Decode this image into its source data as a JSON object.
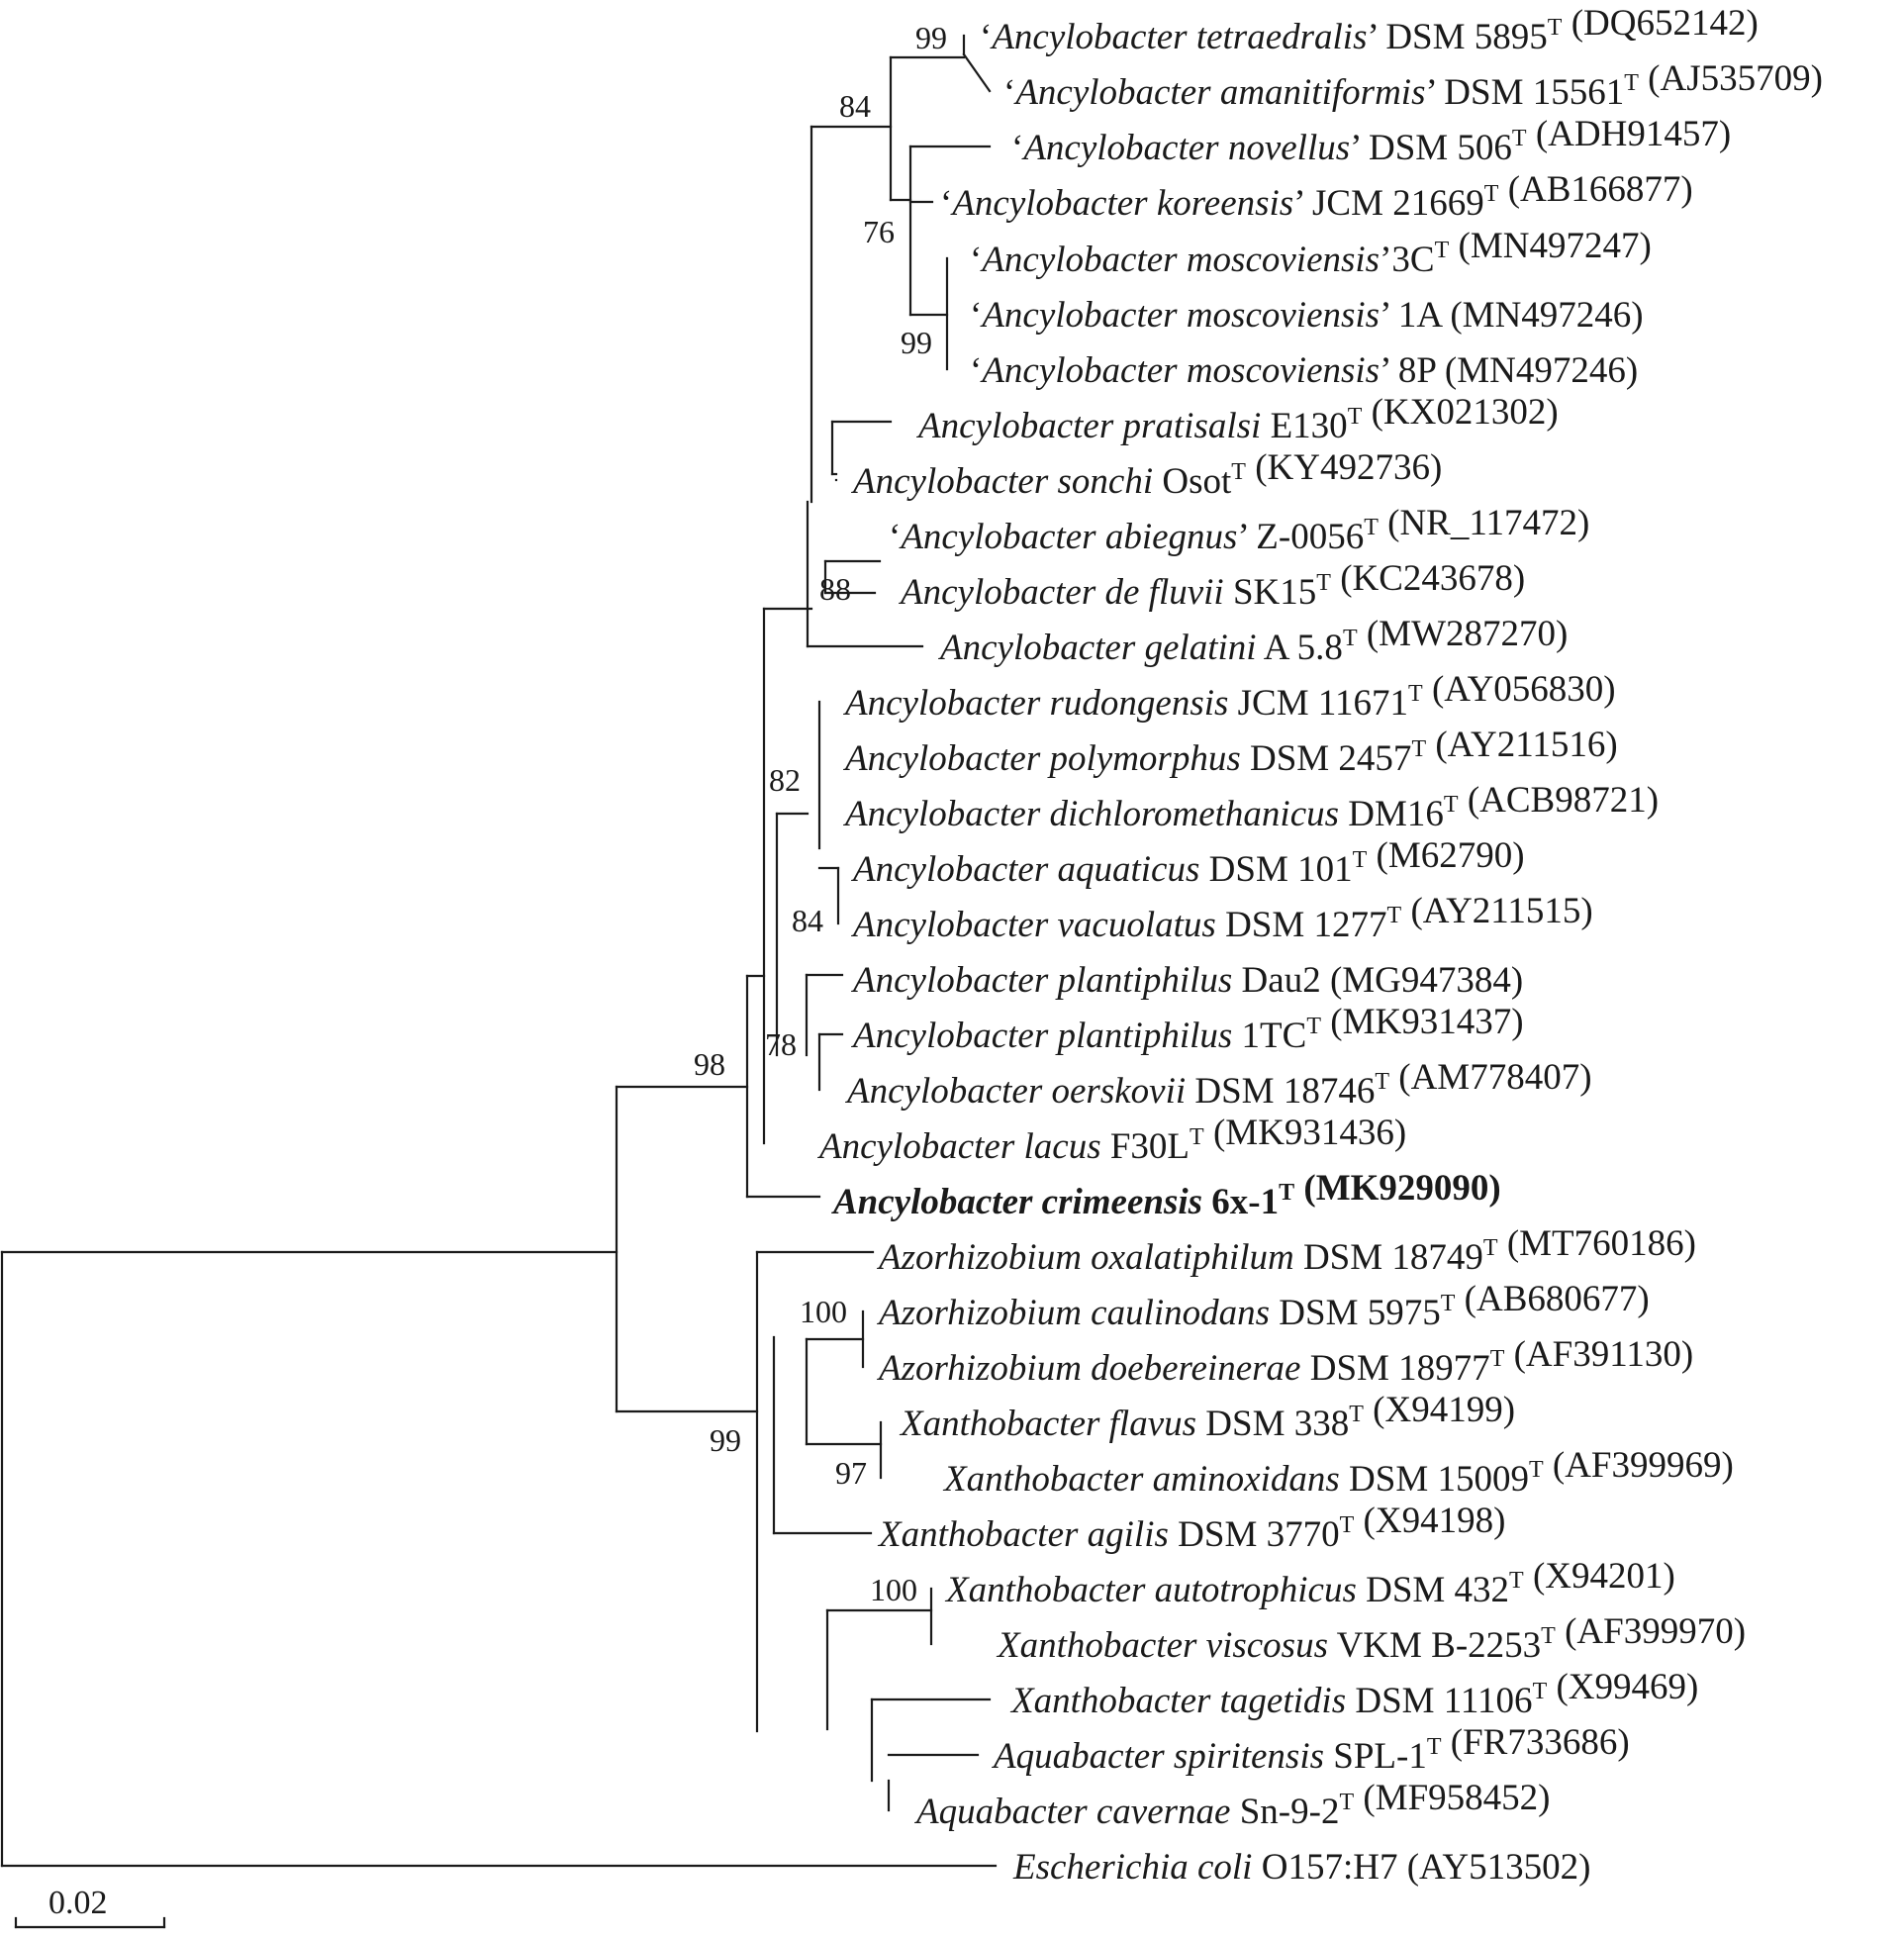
{
  "tree": {
    "taxa": [
      {
        "id": "t01",
        "q1": "‘",
        "name": "Ancylobacter tetraedralis",
        "q2": "’",
        "strain": " DSM 5895",
        "sup": "T",
        "acc": " (DQ652142)"
      },
      {
        "id": "t02",
        "q1": "‘",
        "name": "Ancylobacter amanitiformis",
        "q2": "’",
        "strain": " DSM 15561",
        "sup": "T",
        "acc": " (AJ535709)"
      },
      {
        "id": "t03",
        "q1": "‘",
        "name": "Ancylobacter novellus",
        "q2": "’",
        "strain": " DSM 506",
        "sup": "T",
        "acc": " (ADH91457)"
      },
      {
        "id": "t04",
        "q1": "‘",
        "name": "Ancylobacter koreensis",
        "q2": "’",
        "strain": " JCM 21669",
        "sup": "T",
        "acc": " (AB166877)"
      },
      {
        "id": "t05",
        "q1": "‘",
        "name": "Ancylobacter moscoviensis",
        "q2": "’",
        "strain": "3C",
        "sup": "T",
        "acc": " (MN497247)"
      },
      {
        "id": "t06",
        "q1": "‘",
        "name": "Ancylobacter moscoviensis",
        "q2": "’",
        "strain": " 1A",
        "sup": "",
        "acc": " (MN497246)"
      },
      {
        "id": "t07",
        "q1": "‘",
        "name": "Ancylobacter moscoviensis",
        "q2": "’",
        "strain": " 8P",
        "sup": "",
        "acc": " (MN497246)"
      },
      {
        "id": "t08",
        "q1": "",
        "name": "Ancylobacter pratisalsi",
        "q2": "",
        "strain": " E130",
        "sup": "T",
        "acc": " (KX021302)"
      },
      {
        "id": "t09",
        "q1": "",
        "name": "Ancylobacter sonchi",
        "q2": "",
        "strain": " Osot",
        "sup": "T",
        "acc": " (KY492736)"
      },
      {
        "id": "t10",
        "q1": "‘",
        "name": "Ancylobacter abiegnus",
        "q2": "’",
        "strain": " Z-0056",
        "sup": "T",
        "acc": " (NR_117472)"
      },
      {
        "id": "t11",
        "q1": "",
        "name": "Ancylobacter de fluvii",
        "q2": "",
        "strain": " SK15",
        "sup": "T",
        "acc": " (KC243678)"
      },
      {
        "id": "t12",
        "q1": "",
        "name": "Ancylobacter gelatini",
        "q2": "",
        "strain": " A 5.8",
        "sup": "T",
        "acc": " (MW287270)"
      },
      {
        "id": "t13",
        "q1": "",
        "name": "Ancylobacter rudongensis",
        "q2": "",
        "strain": " JCM 11671",
        "sup": "T",
        "acc": " (AY056830)"
      },
      {
        "id": "t14",
        "q1": "",
        "name": "Ancylobacter polymorphus",
        "q2": "",
        "strain": " DSM 2457",
        "sup": "T",
        "acc": " (AY211516)"
      },
      {
        "id": "t15",
        "q1": "",
        "name": "Ancylobacter dichloromethanicus",
        "q2": "",
        "strain": " DM16",
        "sup": "T",
        "acc": " (ACB98721)"
      },
      {
        "id": "t16",
        "q1": "",
        "name": "Ancylobacter aquaticus",
        "q2": "",
        "strain": " DSM 101",
        "sup": "T",
        "acc": " (M62790)"
      },
      {
        "id": "t17",
        "q1": "",
        "name": "Ancylobacter vacuolatus",
        "q2": "",
        "strain": " DSM 1277",
        "sup": "T",
        "acc": " (AY211515)"
      },
      {
        "id": "t18",
        "q1": "",
        "name": "Ancylobacter plantiphilus",
        "q2": "",
        "strain": " Dau2",
        "sup": "",
        "acc": " (MG947384)"
      },
      {
        "id": "t19",
        "q1": "",
        "name": "Ancylobacter plantiphilus",
        "q2": "",
        "strain": " 1TC",
        "sup": "T",
        "acc": " (MK931437)"
      },
      {
        "id": "t20",
        "q1": "",
        "name": "Ancylobacter oerskovii",
        "q2": "",
        "strain": " DSM 18746",
        "sup": "T",
        "acc": " (AM778407)"
      },
      {
        "id": "t21",
        "q1": "",
        "name": "Ancylobacter lacus",
        "q2": "",
        "strain": " F30L",
        "sup": "T",
        "acc": " (MK931436)"
      },
      {
        "id": "t22",
        "q1": "",
        "name": "Ancylobacter crimeensis",
        "q2": "",
        "strain": " 6x-1",
        "sup": "T",
        "acc": " (MK929090)",
        "bold": true
      },
      {
        "id": "t23",
        "q1": "",
        "name": "Azorhizobium oxalatiphilum",
        "q2": "",
        "strain": " DSM 18749",
        "sup": "T",
        "acc": " (MT760186)"
      },
      {
        "id": "t24",
        "q1": "",
        "name": "Azorhizobium caulinodans",
        "q2": "",
        "strain": " DSM 5975",
        "sup": "T",
        "acc": " (AB680677)"
      },
      {
        "id": "t25",
        "q1": "",
        "name": "Azorhizobium doebereinerae",
        "q2": "",
        "strain": " DSM 18977",
        "sup": "T",
        "acc": " (AF391130)"
      },
      {
        "id": "t26",
        "q1": "",
        "name": "Xanthobacter flavus",
        "q2": "",
        "strain": " DSM 338",
        "sup": "T",
        "acc": " (X94199)"
      },
      {
        "id": "t27",
        "q1": "",
        "name": "Xanthobacter aminoxidans",
        "q2": "",
        "strain": " DSM 15009",
        "sup": "T",
        "acc": " (AF399969)"
      },
      {
        "id": "t28",
        "q1": "",
        "name": "Xanthobacter agilis",
        "q2": "",
        "strain": " DSM 3770",
        "sup": "T",
        "acc": " (X94198)"
      },
      {
        "id": "t29",
        "q1": "",
        "name": "Xanthobacter autotrophicus",
        "q2": "",
        "strain": " DSM 432",
        "sup": "T",
        "acc": " (X94201)"
      },
      {
        "id": "t30",
        "q1": "",
        "name": "Xanthobacter viscosus",
        "q2": "",
        "strain": " VKM B-2253",
        "sup": "T",
        "acc": " (AF399970)"
      },
      {
        "id": "t31",
        "q1": "",
        "name": "Xanthobacter tagetidis",
        "q2": "",
        "strain": " DSM 11106",
        "sup": "T",
        "acc": " (X99469)"
      },
      {
        "id": "t32",
        "q1": "",
        "name": "Aquabacter spiritensis",
        "q2": "",
        "strain": " SPL-1",
        "sup": "T",
        "acc": " (FR733686)"
      },
      {
        "id": "t33",
        "q1": "",
        "name": "Aquabacter cavernae",
        "q2": "",
        "strain": " Sn-9-2",
        "sup": "T",
        "acc": " (MF958452)"
      },
      {
        "id": "t34",
        "q1": "",
        "name": "Escherichia coli",
        "q2": "",
        "strain": " O157:H7",
        "sup": "",
        "acc": " (AY513502)"
      }
    ],
    "bootstrap": [
      {
        "id": "b_99_tetra",
        "value": "99"
      },
      {
        "id": "b_84_top",
        "value": "84"
      },
      {
        "id": "b_76",
        "value": "76"
      },
      {
        "id": "b_99_mosc",
        "value": "99"
      },
      {
        "id": "b_88",
        "value": "88"
      },
      {
        "id": "b_82",
        "value": "82"
      },
      {
        "id": "b_84_aqua",
        "value": "84"
      },
      {
        "id": "b_78",
        "value": "78"
      },
      {
        "id": "b_98",
        "value": "98"
      },
      {
        "id": "b_100_azo",
        "value": "100"
      },
      {
        "id": "b_97",
        "value": "97"
      },
      {
        "id": "b_99_xan",
        "value": "99"
      },
      {
        "id": "b_100_xan",
        "value": "100"
      }
    ],
    "scale_bar": {
      "label": "0.02"
    }
  }
}
